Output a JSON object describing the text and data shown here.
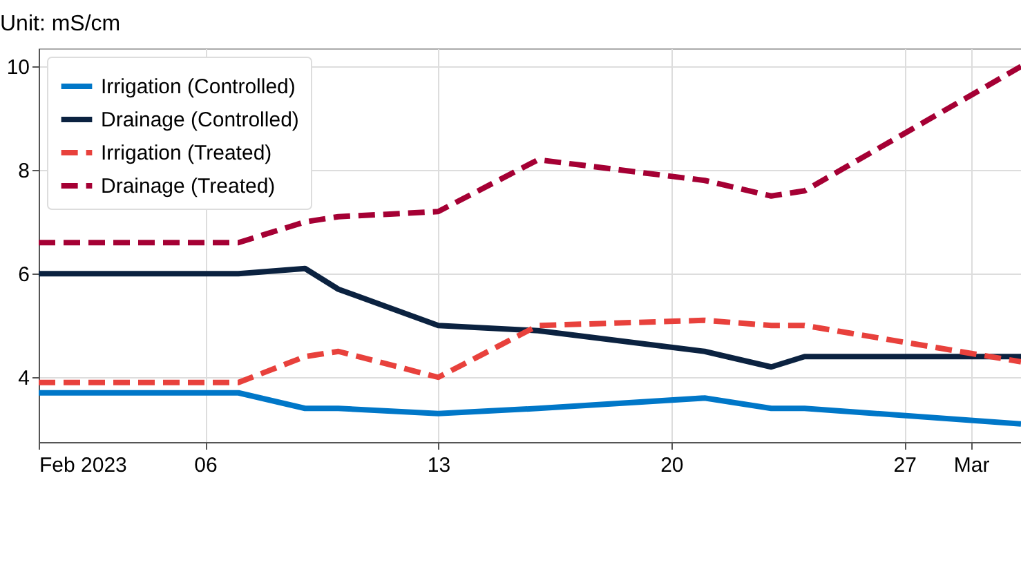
{
  "chart_data": {
    "type": "line",
    "title": "Unit: mS/cm",
    "x": [
      "2023-02-01",
      "2023-02-07",
      "2023-02-09",
      "2023-02-10",
      "2023-02-13",
      "2023-02-16",
      "2023-02-21",
      "2023-02-23",
      "2023-02-24",
      "2023-03-02T12:00"
    ],
    "series": [
      {
        "name": "Irrigation (Controlled)",
        "color": "#0077c8",
        "line_style": "solid",
        "values": [
          3.7,
          3.7,
          3.4,
          3.4,
          3.3,
          3.4,
          3.6,
          3.4,
          3.4,
          3.1
        ]
      },
      {
        "name": "Drainage (Controlled)",
        "color": "#0b2240",
        "line_style": "solid",
        "values": [
          6.0,
          6.0,
          6.1,
          5.7,
          5.0,
          4.9,
          4.5,
          4.2,
          4.4,
          4.4
        ]
      },
      {
        "name": "Irrigation (Treated)",
        "color": "#e8413c",
        "line_style": "dashed",
        "values": [
          3.9,
          3.9,
          4.4,
          4.5,
          4.0,
          5.0,
          5.1,
          5.0,
          5.0,
          4.3
        ]
      },
      {
        "name": "Drainage (Treated)",
        "color": "#a50034",
        "line_style": "dashed",
        "values": [
          6.6,
          6.6,
          7.0,
          7.1,
          7.2,
          8.2,
          7.8,
          7.5,
          7.6,
          10.0
        ]
      }
    ],
    "xlim": [
      "2023-02-01",
      "2023-03-02T12:00"
    ],
    "xticks": [
      {
        "value": "2023-02-01",
        "label": "Feb 2023"
      },
      {
        "value": "2023-02-06",
        "label": "06"
      },
      {
        "value": "2023-02-13",
        "label": "13"
      },
      {
        "value": "2023-02-20",
        "label": "20"
      },
      {
        "value": "2023-02-27",
        "label": "27"
      },
      {
        "value": "2023-03-01",
        "label": "Mar"
      }
    ],
    "ylim": [
      2.75,
      10.35
    ],
    "yticks": [
      4,
      6,
      8,
      10
    ],
    "grid": true,
    "legend": "top left",
    "marker": "none"
  }
}
